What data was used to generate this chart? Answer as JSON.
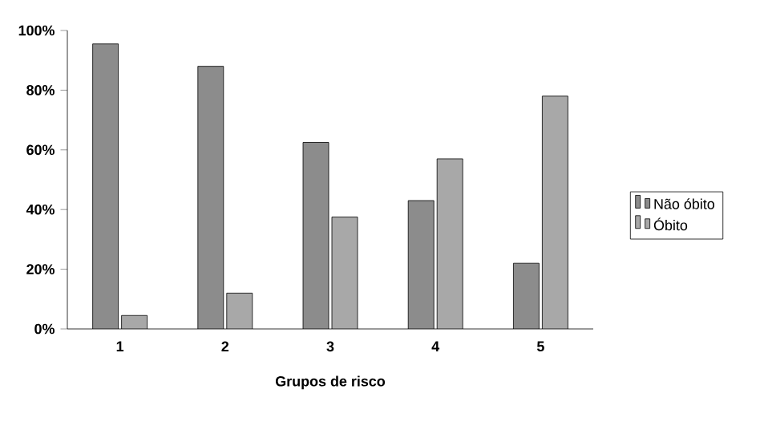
{
  "chart_data": {
    "type": "bar",
    "xlabel": "Grupos de risco",
    "categories": [
      "1",
      "2",
      "3",
      "4",
      "5"
    ],
    "series": [
      {
        "name": "Não óbito",
        "color": "#8c8c8c",
        "values": [
          95.5,
          88,
          62.5,
          43,
          22
        ]
      },
      {
        "name": "Óbito",
        "color": "#a8a8a8",
        "values": [
          4.5,
          12,
          37.5,
          57,
          78
        ]
      }
    ],
    "ylim": [
      0,
      100
    ],
    "yticks": [
      {
        "value": 0,
        "label": "0%"
      },
      {
        "value": 20,
        "label": "20%"
      },
      {
        "value": 40,
        "label": "40%"
      },
      {
        "value": 60,
        "label": "60%"
      },
      {
        "value": 80,
        "label": "80%"
      },
      {
        "value": 100,
        "label": "100%"
      }
    ],
    "legend": "right",
    "grid": false
  }
}
